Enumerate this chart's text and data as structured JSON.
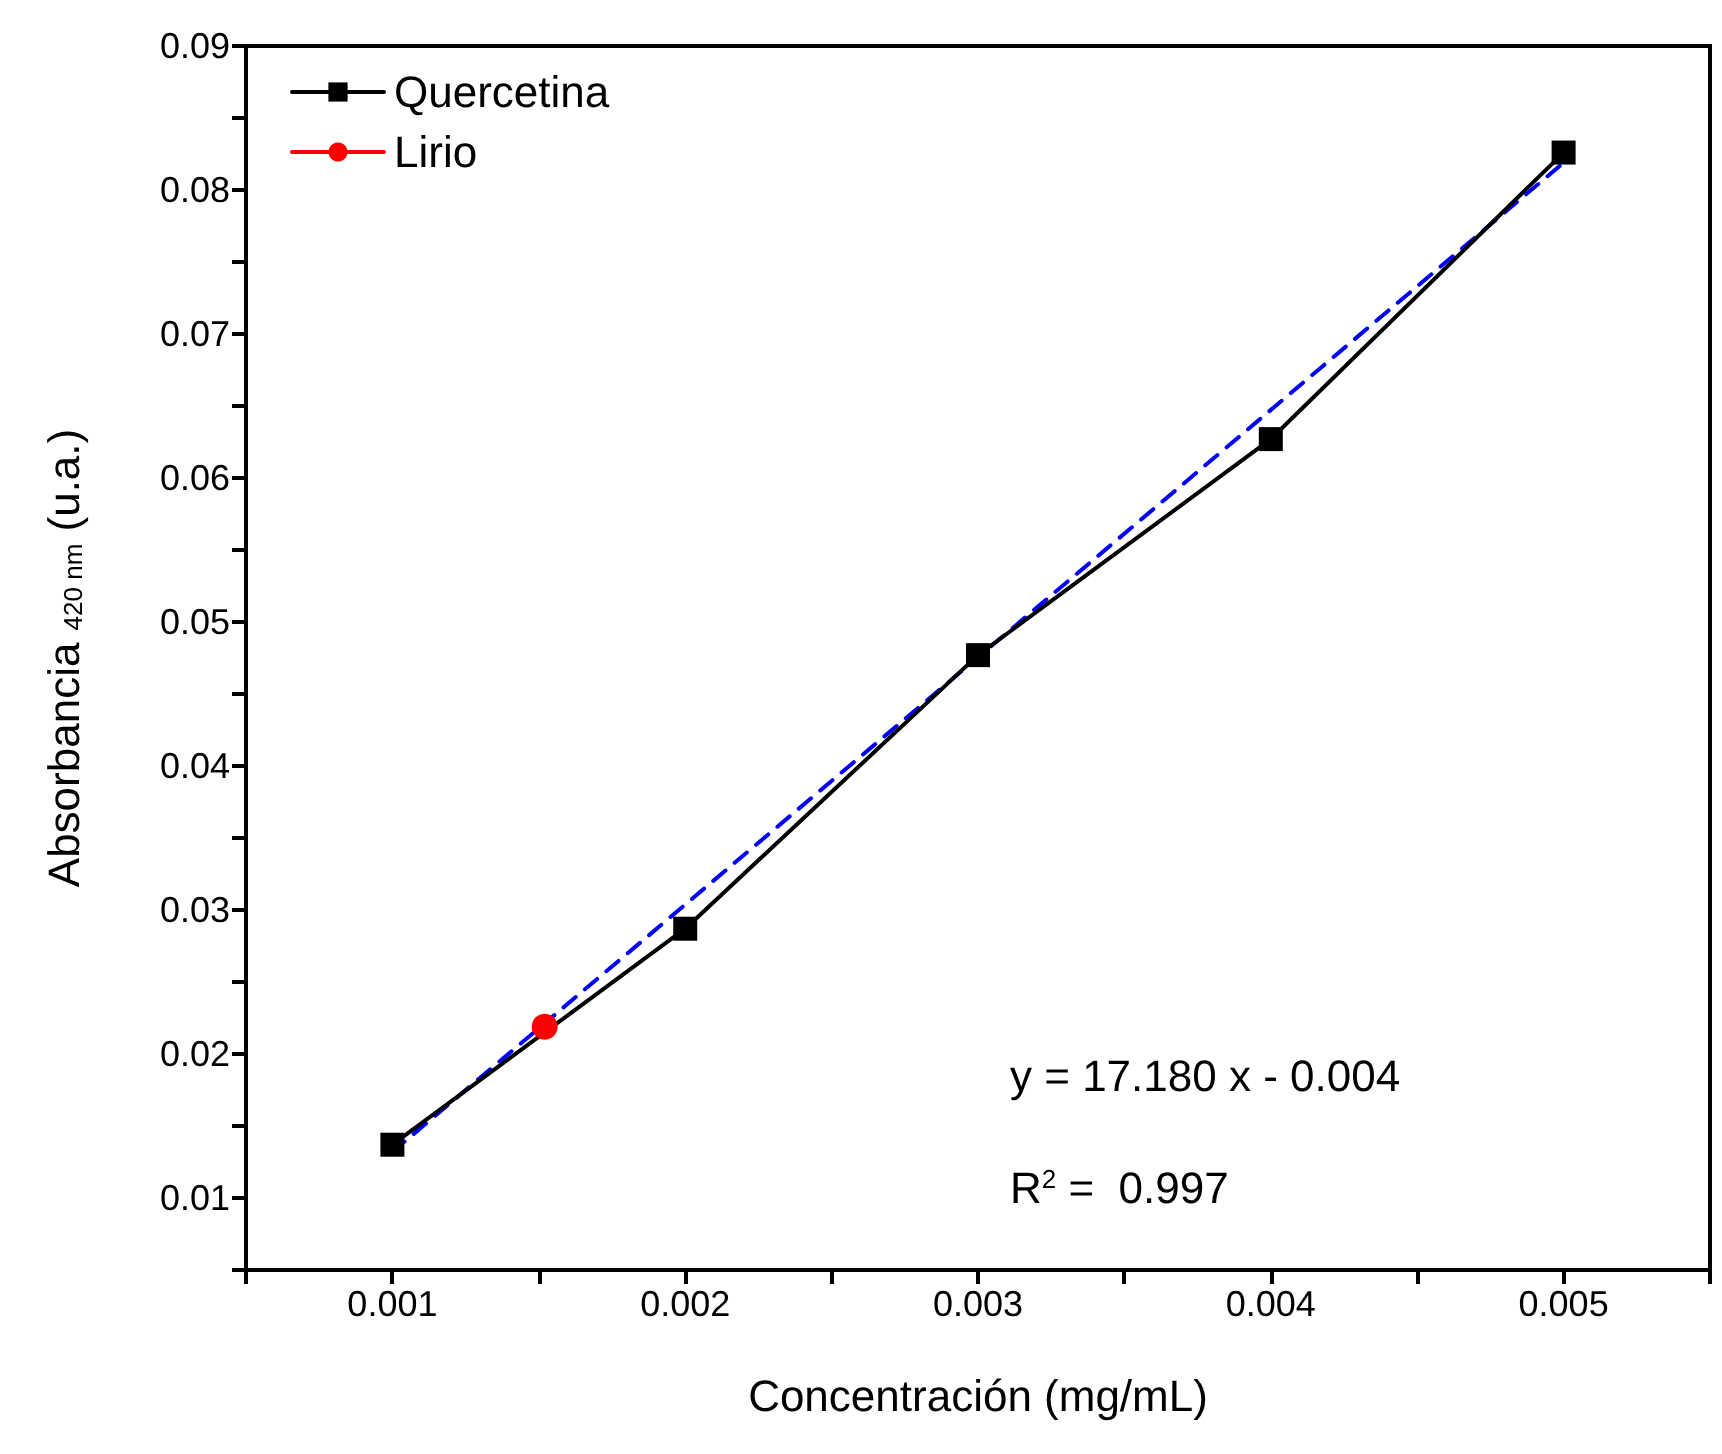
{
  "chart_data": {
    "type": "line",
    "xlabel": "Concentración (mg/mL)",
    "ylabel": "Absorbancia $_{420 nm}$ (u.a.)",
    "xlim": [
      0.0005,
      0.0055
    ],
    "ylim": [
      0.005,
      0.09
    ],
    "xticks": [
      {
        "value": 0.0005,
        "label": null
      },
      0.001,
      {
        "value": 0.0015,
        "label": null
      },
      0.002,
      {
        "value": 0.0025,
        "label": null
      },
      0.003,
      {
        "value": 0.0035,
        "label": null
      },
      0.004,
      {
        "value": 0.0045,
        "label": null
      },
      0.005,
      {
        "value": 0.0055,
        "label": null
      }
    ],
    "yticks": [
      {
        "value": 0.005,
        "label": null
      },
      0.01,
      {
        "value": 0.015,
        "label": null
      },
      0.02,
      {
        "value": 0.025,
        "label": null
      },
      0.03,
      {
        "value": 0.035,
        "label": null
      },
      0.04,
      {
        "value": 0.045,
        "label": null
      },
      0.05,
      {
        "value": 0.055,
        "label": null
      },
      0.06,
      {
        "value": 0.065,
        "label": null
      },
      0.07,
      {
        "value": 0.075,
        "label": null
      },
      0.08,
      {
        "value": 0.085,
        "label": null
      },
      0.09
    ],
    "series": [
      {
        "name": "Quercetina",
        "color": "#000000",
        "x": [
          0.001,
          0.002,
          0.003,
          0.004,
          0.005
        ],
        "values": [
          0.0137,
          0.0287,
          0.0477,
          0.0627,
          0.0826
        ],
        "marker": "square",
        "line_style": "solid"
      },
      {
        "name": "Lirio",
        "color": "#ff0000",
        "x": [
          0.00152
        ],
        "values": [
          0.0219
        ],
        "marker": "circle",
        "line_style": "solid"
      },
      {
        "color": "#0000ff",
        "x": [
          0.001,
          0.005
        ],
        "values": [
          0.0132,
          0.0819
        ],
        "marker": "none",
        "line_style": "dashed"
      }
    ],
    "annotations": [
      "y = 17.180 x - 0.004",
      "R$^{2}$ =  0.997"
    ],
    "legend": "top left",
    "grid": false
  }
}
